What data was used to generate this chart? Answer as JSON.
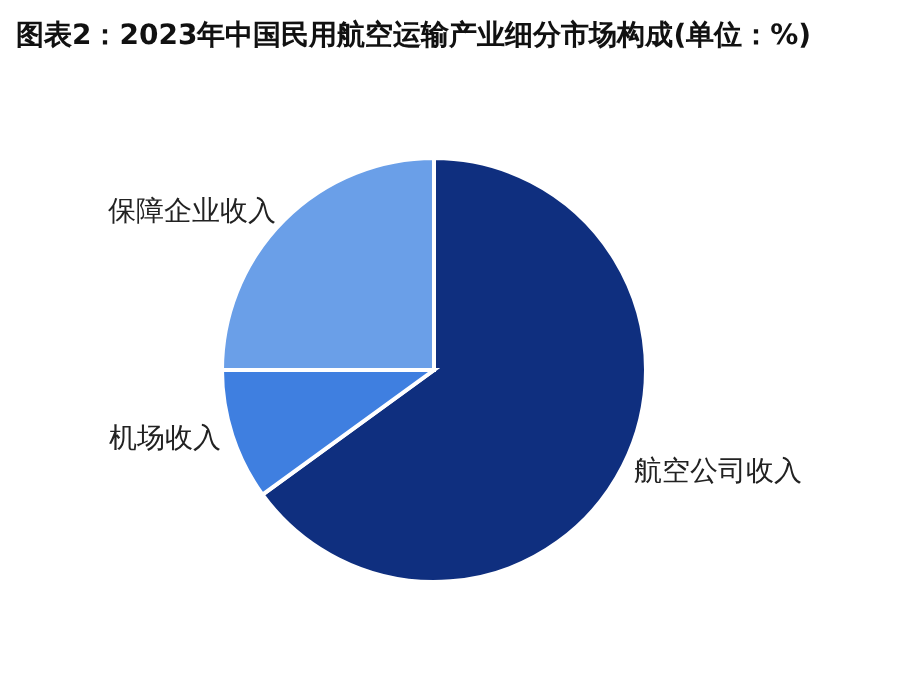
{
  "chart_data": {
    "type": "pie",
    "title": "图表2：2023年中国民用航空运输产业细分市场构成(单位：%)",
    "categories": [
      "航空公司收入",
      "机场收入",
      "保障企业收入"
    ],
    "values": [
      65,
      10,
      25
    ],
    "colors": [
      "#0f2f7f",
      "#3f7fe0",
      "#6a9fe8"
    ]
  }
}
